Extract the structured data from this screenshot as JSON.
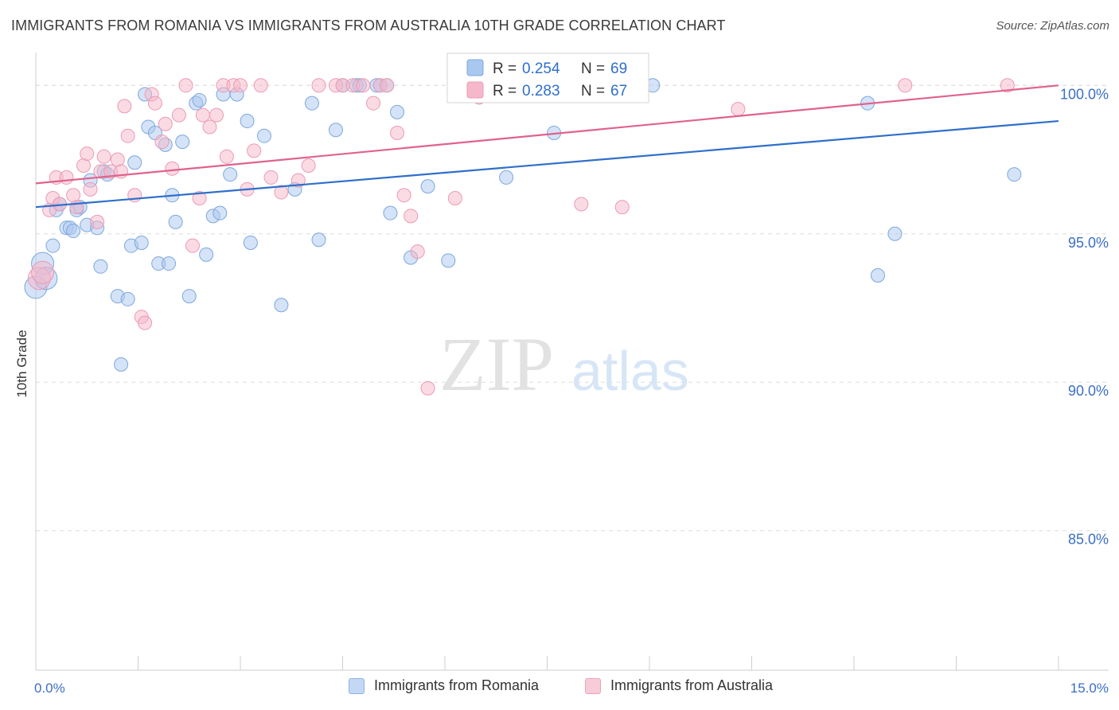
{
  "header": {
    "title": "IMMIGRANTS FROM ROMANIA VS IMMIGRANTS FROM AUSTRALIA 10TH GRADE CORRELATION CHART",
    "source": "Source: ZipAtlas.com"
  },
  "watermark": {
    "zip": "ZIP",
    "atlas": "atlas"
  },
  "colors": {
    "blue_fill": "#a9c8f0",
    "blue_stroke": "#7ea7dc",
    "blue_line": "#2f6fca",
    "pink_fill": "#f5b8ca",
    "pink_stroke": "#ec9ab4",
    "pink_line": "#e0628d",
    "axis_text": "#3b6fc4",
    "grid": "#dddddd"
  },
  "legend": {
    "r_label": "R = ",
    "n_label": "N = ",
    "rows": [
      {
        "r": "0.254",
        "n": "69"
      },
      {
        "r": "0.283",
        "n": "67"
      }
    ]
  },
  "chart_data": {
    "type": "scatter",
    "title": "IMMIGRANTS FROM ROMANIA VS IMMIGRANTS FROM AUSTRALIA 10TH GRADE CORRELATION CHART",
    "xlabel": "",
    "ylabel": "10th Grade",
    "xlim": [
      0,
      15
    ],
    "ylim": [
      80.3,
      101.0
    ],
    "x_tick_labels": [
      "0.0%",
      "15.0%"
    ],
    "y_ticks": [
      85,
      90,
      95,
      100
    ],
    "y_tick_labels": [
      "85.0%",
      "90.0%",
      "95.0%",
      "100.0%"
    ],
    "grid": true,
    "legend_position": "top-center",
    "series": [
      {
        "name": "Immigrants from Romania",
        "color": "#a9c8f0",
        "trend": {
          "x": [
            0,
            15
          ],
          "y": [
            95.9,
            98.8
          ]
        },
        "points": [
          [
            0.0,
            93.2
          ],
          [
            0.1,
            94.0
          ],
          [
            0.15,
            93.5
          ],
          [
            0.25,
            94.6
          ],
          [
            0.3,
            95.8
          ],
          [
            0.35,
            96.0
          ],
          [
            0.45,
            95.2
          ],
          [
            0.5,
            95.2
          ],
          [
            0.55,
            95.1
          ],
          [
            0.6,
            95.8
          ],
          [
            0.65,
            95.9
          ],
          [
            0.75,
            95.3
          ],
          [
            0.8,
            96.8
          ],
          [
            0.9,
            95.2
          ],
          [
            0.95,
            93.9
          ],
          [
            1.0,
            97.1
          ],
          [
            1.05,
            97.0
          ],
          [
            1.2,
            92.9
          ],
          [
            1.25,
            90.6
          ],
          [
            1.35,
            92.8
          ],
          [
            1.4,
            94.6
          ],
          [
            1.45,
            97.4
          ],
          [
            1.55,
            94.7
          ],
          [
            1.6,
            99.7
          ],
          [
            1.65,
            98.6
          ],
          [
            1.75,
            98.4
          ],
          [
            1.8,
            94.0
          ],
          [
            1.9,
            98.0
          ],
          [
            1.95,
            94.0
          ],
          [
            2.0,
            96.3
          ],
          [
            2.05,
            95.4
          ],
          [
            2.15,
            98.1
          ],
          [
            2.25,
            92.9
          ],
          [
            2.35,
            99.4
          ],
          [
            2.4,
            99.5
          ],
          [
            2.5,
            94.3
          ],
          [
            2.6,
            95.6
          ],
          [
            2.7,
            95.7
          ],
          [
            2.75,
            99.7
          ],
          [
            2.85,
            97.0
          ],
          [
            2.95,
            99.7
          ],
          [
            3.1,
            98.8
          ],
          [
            3.15,
            94.7
          ],
          [
            3.35,
            98.3
          ],
          [
            3.6,
            92.6
          ],
          [
            3.8,
            96.5
          ],
          [
            4.05,
            99.4
          ],
          [
            4.15,
            94.8
          ],
          [
            4.4,
            98.5
          ],
          [
            4.5,
            100.0
          ],
          [
            4.7,
            100.0
          ],
          [
            4.75,
            100.0
          ],
          [
            5.0,
            100.0
          ],
          [
            5.05,
            100.0
          ],
          [
            5.15,
            100.0
          ],
          [
            5.2,
            95.7
          ],
          [
            5.3,
            99.1
          ],
          [
            5.5,
            94.2
          ],
          [
            5.75,
            96.6
          ],
          [
            6.05,
            94.1
          ],
          [
            6.5,
            99.6
          ],
          [
            6.9,
            96.9
          ],
          [
            7.35,
            100.0
          ],
          [
            7.6,
            98.4
          ],
          [
            9.05,
            100.0
          ],
          [
            12.2,
            99.4
          ],
          [
            12.35,
            93.6
          ],
          [
            12.6,
            95.0
          ],
          [
            14.35,
            97.0
          ]
        ]
      },
      {
        "name": "Immigrants from Australia",
        "color": "#f5b8ca",
        "trend": {
          "x": [
            0,
            15
          ],
          "y": [
            96.7,
            100.0
          ]
        },
        "points": [
          [
            0.05,
            93.5
          ],
          [
            0.1,
            93.7
          ],
          [
            0.2,
            95.8
          ],
          [
            0.25,
            96.2
          ],
          [
            0.3,
            96.9
          ],
          [
            0.35,
            96.0
          ],
          [
            0.45,
            96.9
          ],
          [
            0.55,
            96.3
          ],
          [
            0.6,
            95.9
          ],
          [
            0.7,
            97.3
          ],
          [
            0.75,
            97.7
          ],
          [
            0.8,
            96.5
          ],
          [
            0.9,
            95.4
          ],
          [
            0.95,
            97.1
          ],
          [
            1.0,
            97.6
          ],
          [
            1.1,
            97.1
          ],
          [
            1.2,
            97.5
          ],
          [
            1.25,
            97.1
          ],
          [
            1.3,
            99.3
          ],
          [
            1.35,
            98.3
          ],
          [
            1.45,
            96.3
          ],
          [
            1.55,
            92.2
          ],
          [
            1.6,
            92.0
          ],
          [
            1.7,
            99.7
          ],
          [
            1.75,
            99.4
          ],
          [
            1.85,
            98.1
          ],
          [
            1.9,
            98.7
          ],
          [
            2.0,
            97.2
          ],
          [
            2.1,
            99.0
          ],
          [
            2.2,
            100.0
          ],
          [
            2.3,
            94.6
          ],
          [
            2.4,
            96.2
          ],
          [
            2.45,
            99.0
          ],
          [
            2.55,
            98.6
          ],
          [
            2.65,
            99.0
          ],
          [
            2.75,
            100.0
          ],
          [
            2.8,
            97.6
          ],
          [
            2.9,
            100.0
          ],
          [
            3.0,
            100.0
          ],
          [
            3.1,
            96.5
          ],
          [
            3.2,
            97.8
          ],
          [
            3.3,
            100.0
          ],
          [
            3.45,
            96.9
          ],
          [
            3.6,
            96.4
          ],
          [
            3.85,
            96.8
          ],
          [
            4.0,
            97.3
          ],
          [
            4.15,
            100.0
          ],
          [
            4.4,
            100.0
          ],
          [
            4.5,
            100.0
          ],
          [
            4.65,
            100.0
          ],
          [
            4.8,
            100.0
          ],
          [
            4.95,
            99.4
          ],
          [
            5.05,
            100.0
          ],
          [
            5.15,
            100.0
          ],
          [
            5.3,
            98.4
          ],
          [
            5.4,
            96.3
          ],
          [
            5.5,
            95.6
          ],
          [
            5.6,
            94.4
          ],
          [
            5.75,
            89.8
          ],
          [
            6.15,
            96.2
          ],
          [
            6.5,
            99.6
          ],
          [
            7.35,
            100.0
          ],
          [
            8.0,
            96.0
          ],
          [
            8.6,
            95.9
          ],
          [
            10.3,
            99.2
          ],
          [
            12.75,
            100.0
          ],
          [
            14.25,
            100.0
          ]
        ]
      }
    ]
  }
}
